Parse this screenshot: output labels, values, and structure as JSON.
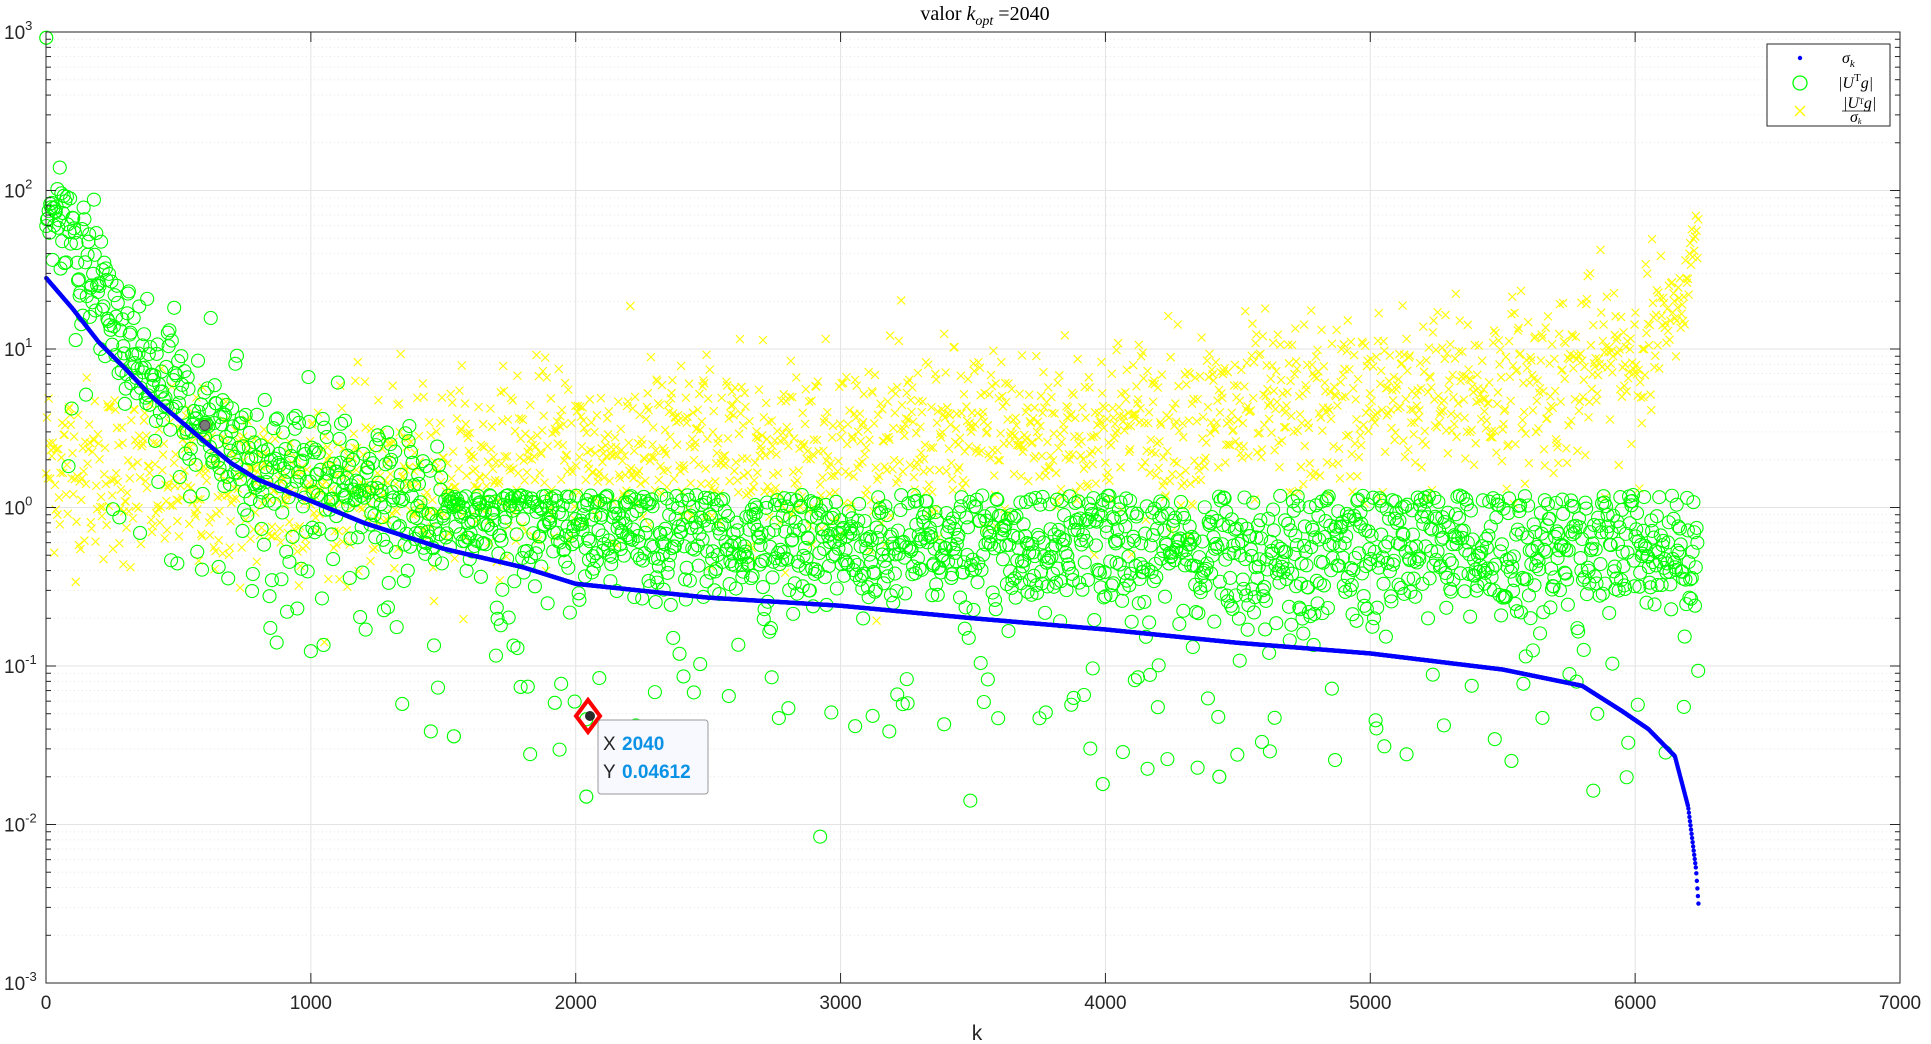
{
  "chart_data": {
    "type": "scatter",
    "title": "valor k_opt =2040",
    "title_parts": {
      "prefix": "valor ",
      "var": "k",
      "sub": "opt",
      "suffix": " =2040"
    },
    "xlabel": "k",
    "ylabel": "",
    "xlim": [
      0,
      7000
    ],
    "ylim": [
      0.001,
      1000
    ],
    "yscale": "log",
    "grid": true,
    "minor_grid": true,
    "legend_position": "top-right",
    "x_ticks": [
      "0",
      "1000",
      "2000",
      "3000",
      "4000",
      "5000",
      "6000",
      "7000"
    ],
    "y_ticks": [
      {
        "value": 0.001,
        "base": "10",
        "exp": "-3"
      },
      {
        "value": 0.01,
        "base": "10",
        "exp": "-2"
      },
      {
        "value": 0.1,
        "base": "10",
        "exp": "-1"
      },
      {
        "value": 1,
        "base": "10",
        "exp": "0"
      },
      {
        "value": 10,
        "base": "10",
        "exp": "1"
      },
      {
        "value": 100,
        "base": "10",
        "exp": "2"
      },
      {
        "value": 1000,
        "base": "10",
        "exp": "3"
      }
    ],
    "n_points": 6240,
    "series": [
      {
        "name": "σ_k",
        "legend_latex": "\\sigma_k",
        "marker": "dot",
        "color": "#0000ff",
        "x": [
          1,
          100,
          200,
          300,
          400,
          500,
          600,
          700,
          800,
          1000,
          1200,
          1500,
          1800,
          2000,
          2500,
          3000,
          3500,
          4000,
          4500,
          5000,
          5500,
          5800,
          5950,
          6050,
          6150,
          6200,
          6230,
          6240
        ],
        "values": [
          28,
          18,
          11,
          7.5,
          5.0,
          3.6,
          2.6,
          1.9,
          1.5,
          1.1,
          0.8,
          0.55,
          0.42,
          0.33,
          0.27,
          0.24,
          0.2,
          0.17,
          0.14,
          0.12,
          0.095,
          0.075,
          0.052,
          0.04,
          0.027,
          0.013,
          0.0052,
          0.003
        ]
      },
      {
        "name": "|U^T g|",
        "legend_latex": "|U^{\\mathrm{T}} g|",
        "marker": "circle",
        "color": "#00ff00",
        "trend_x": [
          1,
          100,
          300,
          600,
          1000,
          1500,
          2000,
          3000,
          4000,
          5000,
          6000,
          6240
        ],
        "trend_values": [
          70,
          45,
          12,
          3.0,
          1.5,
          0.95,
          0.72,
          0.6,
          0.55,
          0.55,
          0.55,
          0.5
        ],
        "highlight": [
          {
            "x": 1,
            "y": 920
          },
          {
            "x": 600,
            "y": 3.3
          },
          {
            "x": 2040,
            "y": 0.04612
          },
          {
            "x": 2040,
            "y": 0.015
          },
          {
            "x": 3990,
            "y": 0.018
          },
          {
            "x": 1540,
            "y": 0.036
          },
          {
            "x": 4430,
            "y": 0.02
          }
        ]
      },
      {
        "name": "|U^T g| / σ_k",
        "legend_latex": "\\frac{|U^{\\mathrm{T}} g|}{\\sigma_k}",
        "marker": "x",
        "color": "#ffff00",
        "trend_x": [
          1,
          300,
          600,
          1000,
          2000,
          3000,
          4000,
          5000,
          5500,
          5800,
          6000,
          6100,
          6200,
          6240
        ],
        "trend_values": [
          2.0,
          1.6,
          1.4,
          1.3,
          2.2,
          2.5,
          3.2,
          4.5,
          5.5,
          7.0,
          9.5,
          13,
          25,
          80
        ]
      }
    ]
  },
  "datatip": {
    "x_label": "X",
    "x_value": "2040",
    "y_label": "Y",
    "y_value": "0.04612",
    "x": 2040,
    "y": 0.04612
  },
  "colors": {
    "sigma": "#0000ff",
    "utg": "#00ff00",
    "ratio": "#ffff00",
    "grid": "#e3e3e3",
    "axis": "#262626",
    "datatip_marker": "#ff0000",
    "datatip_value": "#0a92e6"
  }
}
